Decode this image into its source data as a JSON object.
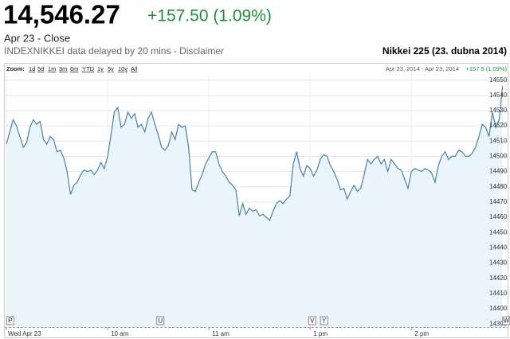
{
  "header": {
    "price": "14,546.27",
    "change": "+157.50 (1.09%)",
    "date": "Apr 23 - Close",
    "source": "INDEXNIKKEI data delayed by 20 mins - Disclaimer",
    "chart_title": "Nikkei 225 (23. dubna 2014)"
  },
  "chart_data": {
    "type": "line",
    "zoom_label": "Zoom:",
    "zoom_options": [
      "1d",
      "5d",
      "1m",
      "3m",
      "6m",
      "YTD",
      "1y",
      "5y",
      "10y",
      "All"
    ],
    "range_text": "Apr 23, 2014 - Apr 23, 2014",
    "change_text": "+157.5 (1.09%)",
    "x": [
      0,
      2,
      4,
      6,
      8,
      10,
      12,
      14,
      16,
      18,
      20,
      22,
      24,
      26,
      28,
      30,
      32,
      34,
      36,
      38,
      40,
      42,
      44,
      46,
      48,
      50,
      52,
      54,
      56,
      58,
      60,
      62,
      64,
      66,
      68,
      70,
      72,
      74,
      76,
      78,
      80,
      82,
      84,
      86,
      88,
      90,
      92,
      94,
      96,
      98,
      100,
      102,
      104,
      106,
      108,
      110,
      112,
      114,
      116,
      118,
      120,
      122,
      124,
      126,
      128,
      130,
      132,
      134,
      136,
      138,
      140,
      142,
      144,
      146,
      148,
      150,
      152,
      154,
      156,
      158,
      160,
      162,
      164,
      166,
      168,
      170,
      172,
      174,
      176,
      178,
      180,
      182,
      184,
      186,
      188,
      190,
      192,
      194,
      196,
      198,
      200,
      202,
      204,
      206,
      208,
      210,
      212,
      214,
      216,
      218,
      220,
      222,
      224,
      226,
      228,
      230,
      232,
      234,
      236,
      238,
      240,
      242,
      244,
      246,
      248,
      250,
      252,
      254,
      256,
      258,
      260,
      262,
      264,
      266,
      268,
      270,
      272,
      274,
      276,
      278,
      280,
      282,
      284,
      286,
      288,
      290,
      292,
      294
    ],
    "values": [
      14508,
      14516,
      14524,
      14520,
      14513,
      14506,
      14509,
      14519,
      14524,
      14521,
      14523,
      14511,
      14508,
      14513,
      14511,
      14503,
      14504,
      14499,
      14490,
      14475,
      14481,
      14483,
      14488,
      14491,
      14490,
      14491,
      14488,
      14491,
      14496,
      14492,
      14500,
      14514,
      14529,
      14532,
      14519,
      14521,
      14529,
      14525,
      14528,
      14519,
      14521,
      14516,
      14525,
      14529,
      14521,
      14514,
      14506,
      14504,
      14507,
      14516,
      14511,
      14521,
      14519,
      14520,
      14506,
      14478,
      14477,
      14483,
      14488,
      14495,
      14499,
      14503,
      14503,
      14495,
      14490,
      14487,
      14483,
      14481,
      14478,
      14461,
      14469,
      14462,
      14466,
      14464,
      14465,
      14461,
      14462,
      14460,
      14458,
      14464,
      14469,
      14471,
      14469,
      14472,
      14474,
      14495,
      14503,
      14492,
      14487,
      14494,
      14492,
      14487,
      14491,
      14498,
      14501,
      14500,
      14494,
      14490,
      14485,
      14478,
      14479,
      14472,
      14477,
      14481,
      14477,
      14479,
      14488,
      14498,
      14495,
      14498,
      14500,
      14495,
      14498,
      14490,
      14498,
      14495,
      14492,
      14491,
      14485,
      14479,
      14490,
      14492,
      14491,
      14490,
      14492,
      14491,
      14489,
      14483,
      14494,
      14500,
      14503,
      14498,
      14500,
      14500,
      14504,
      14503,
      14500,
      14500,
      14502,
      14506,
      14513,
      14521,
      14519,
      14513,
      14529,
      14519,
      14524,
      14546
    ],
    "color": "#4d7fa6",
    "fill": "#e9f4fb",
    "xlim": [
      0,
      297
    ],
    "xticks": [
      {
        "value": 0,
        "label": "Wed Apr 23"
      },
      {
        "value": 60,
        "label": "10 am"
      },
      {
        "value": 120,
        "label": "11 am"
      },
      {
        "value": 180,
        "label": "1 pm"
      },
      {
        "value": 240,
        "label": "2 pm"
      }
    ],
    "ylim": [
      14388,
      14554
    ],
    "yticks": [
      14390,
      14400,
      14410,
      14420,
      14430,
      14440,
      14450,
      14460,
      14470,
      14480,
      14490,
      14500,
      14510,
      14520,
      14530,
      14540,
      14550
    ],
    "grid": true,
    "flags": [
      {
        "label": "P",
        "x": 2
      },
      {
        "label": "U",
        "x": 91
      },
      {
        "label": "V",
        "x": 181
      },
      {
        "label": "Y",
        "x": 188
      },
      {
        "label": "W",
        "x": 296
      }
    ]
  }
}
